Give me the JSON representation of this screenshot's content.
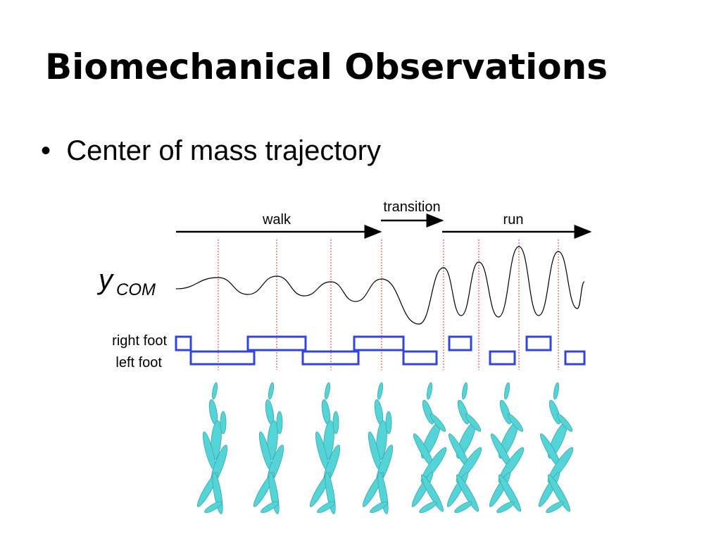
{
  "title": "Biomechanical Observations",
  "bullets": [
    "Center of mass trajectory"
  ],
  "figure": {
    "phases": [
      "walk",
      "transition",
      "run"
    ],
    "y_label": "y",
    "y_subscript": "COM",
    "rows": [
      "right foot",
      "left foot"
    ]
  }
}
